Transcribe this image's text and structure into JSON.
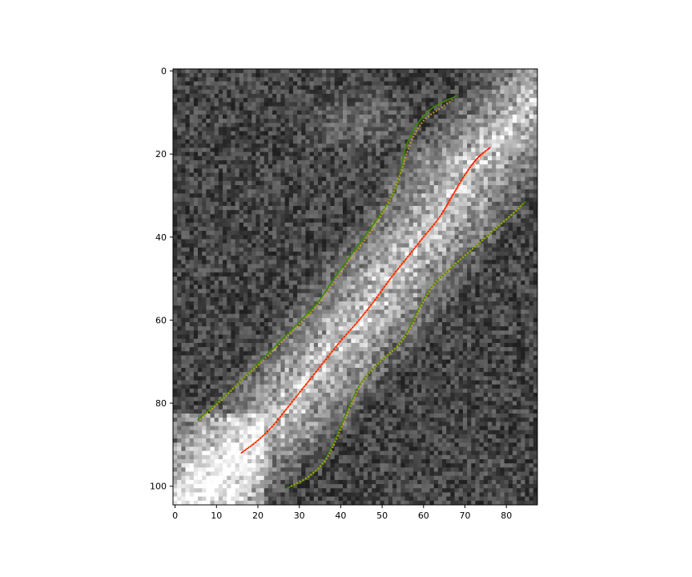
{
  "chart_data": {
    "type": "heatmap",
    "title": "",
    "xlabel": "",
    "ylabel": "",
    "xlim": [
      -0.5,
      87.5
    ],
    "ylim": [
      104.5,
      -0.5
    ],
    "xticks": [
      0,
      10,
      20,
      30,
      40,
      50,
      60,
      70,
      80
    ],
    "yticks": [
      0,
      20,
      40,
      60,
      80,
      100
    ],
    "grid": false,
    "legend": "none",
    "image": {
      "width": 88,
      "height": 105,
      "colormap": "gray",
      "description": "noisy grayscale microscopy image of a bright diagonal filament"
    },
    "series": [
      {
        "role": "upper-boundary-fit",
        "color": "#3a8a00",
        "style": "solid",
        "points": [
          [
            5.5,
            84
          ],
          [
            10,
            80
          ],
          [
            15,
            75.5
          ],
          [
            20,
            70.5
          ],
          [
            25,
            65.5
          ],
          [
            30,
            60.5
          ],
          [
            35,
            55
          ],
          [
            38,
            50.5
          ],
          [
            42,
            45
          ],
          [
            46,
            39.5
          ],
          [
            50,
            34
          ],
          [
            53,
            29
          ],
          [
            54.5,
            24
          ],
          [
            55.5,
            19
          ],
          [
            58,
            13.5
          ],
          [
            62,
            9
          ],
          [
            68,
            6
          ]
        ]
      },
      {
        "role": "upper-boundary-points",
        "color": "#d4a017",
        "style": "dotted",
        "points": [
          [
            6,
            84
          ],
          [
            11,
            79.5
          ],
          [
            16,
            74.5
          ],
          [
            21,
            70
          ],
          [
            26,
            65
          ],
          [
            31,
            60
          ],
          [
            36,
            54.5
          ],
          [
            39,
            50
          ],
          [
            43,
            44.5
          ],
          [
            47,
            39
          ],
          [
            50.5,
            33.5
          ],
          [
            53,
            28.5
          ],
          [
            55,
            23
          ],
          [
            57,
            17
          ],
          [
            60,
            12
          ],
          [
            64,
            9
          ],
          [
            67,
            7
          ]
        ]
      },
      {
        "role": "centerline-fit",
        "color": "#ff0000",
        "style": "solid",
        "points": [
          [
            16,
            92
          ],
          [
            20,
            89
          ],
          [
            24,
            85
          ],
          [
            28,
            80
          ],
          [
            32,
            75
          ],
          [
            36,
            70
          ],
          [
            40,
            65
          ],
          [
            44,
            60.5
          ],
          [
            48,
            55.5
          ],
          [
            52,
            50
          ],
          [
            56,
            45
          ],
          [
            60,
            40
          ],
          [
            64,
            35
          ],
          [
            67,
            30
          ],
          [
            70,
            25
          ],
          [
            73,
            21
          ],
          [
            76,
            18.5
          ]
        ]
      },
      {
        "role": "centerline-points",
        "color": "#ff8c1a",
        "style": "dotted",
        "points": [
          [
            16.5,
            91.5
          ],
          [
            20.5,
            88.5
          ],
          [
            24.5,
            84.5
          ],
          [
            28.5,
            79.5
          ],
          [
            32.5,
            74.5
          ],
          [
            36.5,
            69.5
          ],
          [
            40.5,
            64.5
          ],
          [
            44.5,
            60
          ],
          [
            48.5,
            55
          ],
          [
            52.5,
            49.5
          ],
          [
            56.5,
            44.5
          ],
          [
            60.5,
            39.5
          ],
          [
            64.5,
            34.5
          ],
          [
            67.5,
            29.5
          ],
          [
            70.5,
            24.5
          ],
          [
            73.5,
            21
          ],
          [
            75.5,
            19
          ]
        ]
      },
      {
        "role": "lower-boundary-fit",
        "color": "#3a8a00",
        "style": "solid",
        "points": [
          [
            27,
            100.5
          ],
          [
            32,
            98
          ],
          [
            36,
            94
          ],
          [
            39,
            88
          ],
          [
            42,
            81
          ],
          [
            45,
            75
          ],
          [
            49,
            70.5
          ],
          [
            53,
            67
          ],
          [
            56,
            63
          ],
          [
            59,
            57
          ],
          [
            62,
            52
          ],
          [
            66,
            48
          ],
          [
            70,
            44.5
          ],
          [
            74,
            41
          ],
          [
            78,
            37.5
          ],
          [
            82,
            34
          ],
          [
            84.5,
            31.5
          ]
        ]
      },
      {
        "role": "lower-boundary-points",
        "color": "#d4a017",
        "style": "dotted",
        "points": [
          [
            28,
            100
          ],
          [
            32.5,
            97.5
          ],
          [
            36.5,
            93.5
          ],
          [
            39.5,
            87.5
          ],
          [
            42.5,
            80.5
          ],
          [
            45.5,
            74.5
          ],
          [
            49.5,
            70
          ],
          [
            53.5,
            66.5
          ],
          [
            56.5,
            62.5
          ],
          [
            59.5,
            56.5
          ],
          [
            62.5,
            51.5
          ],
          [
            66.5,
            47.5
          ],
          [
            70.5,
            44
          ],
          [
            74.5,
            40.5
          ],
          [
            78.5,
            37
          ],
          [
            82.5,
            33.5
          ],
          [
            84,
            32
          ]
        ]
      }
    ]
  }
}
